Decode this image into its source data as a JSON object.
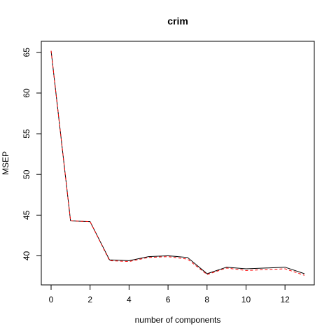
{
  "chart_data": {
    "type": "line",
    "title": "crim",
    "xlabel": "number of components",
    "ylabel": "MSEP",
    "x": [
      0,
      1,
      2,
      3,
      4,
      5,
      6,
      7,
      8,
      9,
      10,
      11,
      12,
      13
    ],
    "xlim": [
      0,
      13
    ],
    "ylim": [
      37.2,
      65.5
    ],
    "xticks": [
      0,
      2,
      4,
      6,
      8,
      10,
      12
    ],
    "yticks": [
      40,
      45,
      50,
      55,
      60,
      65
    ],
    "grid": false,
    "legend": "none",
    "series": [
      {
        "style": "solid",
        "color": "#000000",
        "values": [
          65.2,
          44.3,
          44.2,
          39.5,
          39.4,
          39.9,
          40.0,
          39.8,
          37.8,
          38.6,
          38.4,
          38.5,
          38.6,
          37.8
        ]
      },
      {
        "style": "dashed",
        "color": "#ff0000",
        "values": [
          65.2,
          44.3,
          44.2,
          39.4,
          39.3,
          39.8,
          39.9,
          39.6,
          37.7,
          38.5,
          38.2,
          38.3,
          38.4,
          37.6
        ]
      }
    ]
  }
}
